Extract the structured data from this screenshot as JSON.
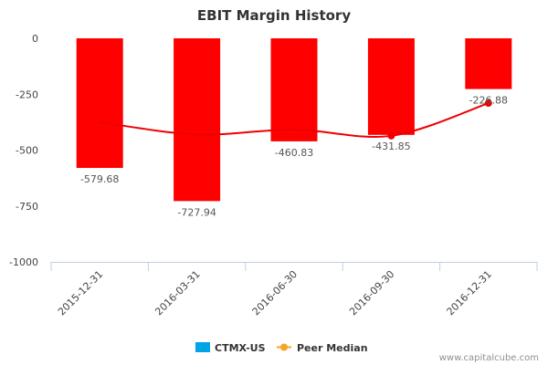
{
  "chart_data": {
    "type": "bar",
    "title": "EBIT Margin History",
    "categories": [
      "2015-12-31",
      "2016-03-31",
      "2016-06-30",
      "2016-09-30",
      "2016-12-31"
    ],
    "series": [
      {
        "name": "CTMX-US",
        "type": "bar",
        "values": [
          -579.68,
          -727.94,
          -460.83,
          -431.85,
          -226.88
        ],
        "data_labels": [
          "-579.68",
          "-727.94",
          "-460.83",
          "-431.85",
          "-226.88"
        ]
      },
      {
        "name": "Peer Median",
        "type": "line",
        "values": [
          -375,
          -430,
          -408,
          -436,
          -290
        ]
      }
    ],
    "ylim": [
      -1000,
      0
    ],
    "yticks": [
      0,
      -250,
      -500,
      -750,
      -1000
    ],
    "ytick_labels": [
      "0",
      "-250",
      "-500",
      "-750",
      "-1000"
    ],
    "grid": false,
    "legend_position": "bottom-center"
  },
  "colors": {
    "bar_fill": "#ff0000",
    "peer_line": "#ee0000",
    "legend_bar_swatch": "#00a2e8",
    "legend_line_swatch": "#f5a623",
    "axis": "#c0d0e0"
  },
  "credit": "www.capitalcube.com"
}
